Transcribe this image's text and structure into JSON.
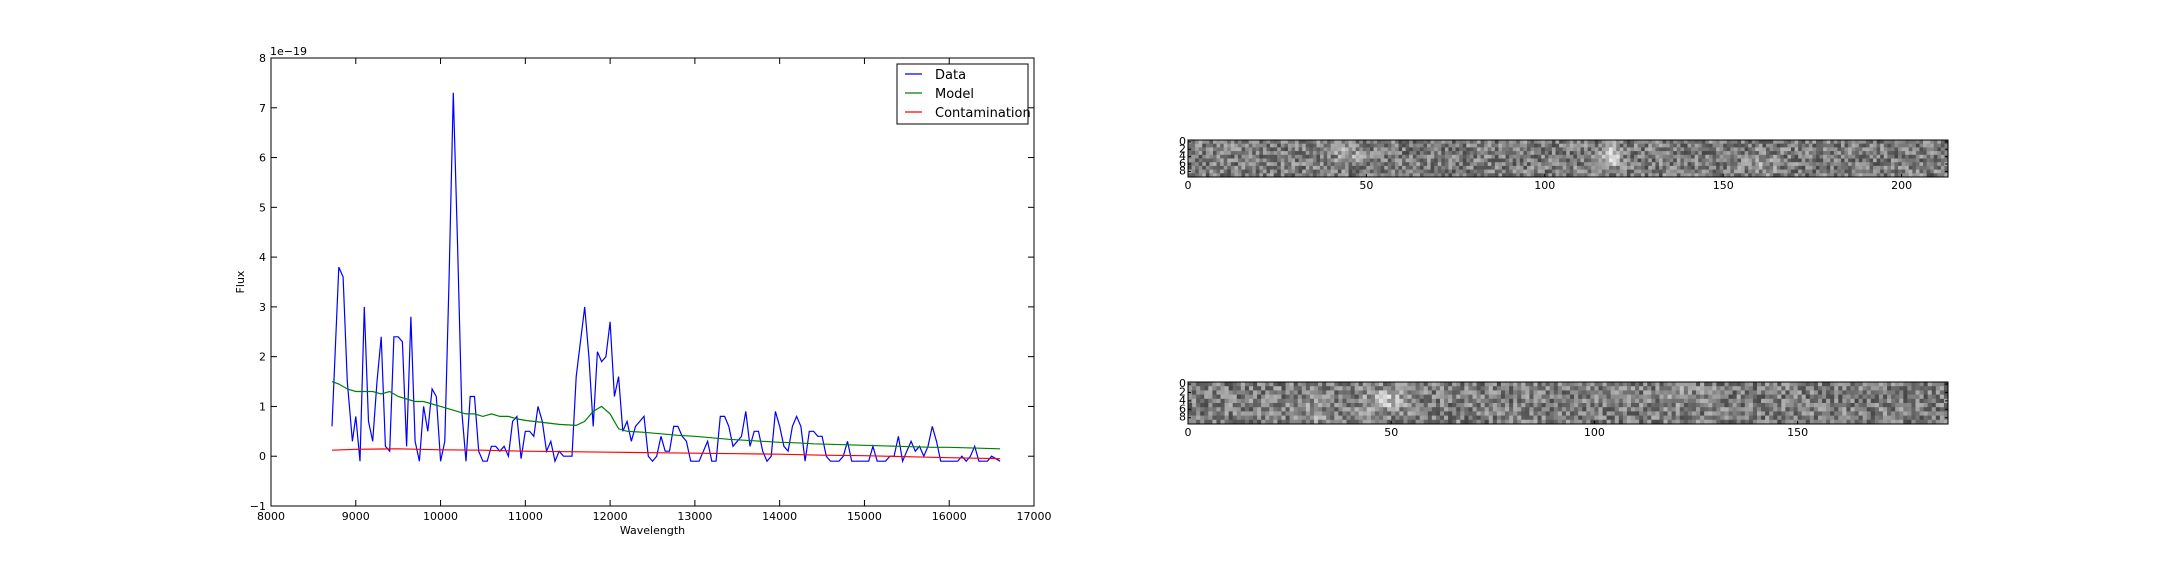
{
  "chart_data": [
    {
      "type": "line",
      "title": "",
      "xlabel": "Wavelength",
      "ylabel": "Flux",
      "offset_text": "1e−19",
      "xlim": [
        8000,
        17000
      ],
      "ylim": [
        -1,
        8
      ],
      "xticks": [
        8000,
        9000,
        10000,
        11000,
        12000,
        13000,
        14000,
        15000,
        16000,
        17000
      ],
      "yticks": [
        -1,
        0,
        1,
        2,
        3,
        4,
        5,
        6,
        7,
        8
      ],
      "xtick_labels": [
        "8000",
        "9000",
        "10000",
        "11000",
        "12000",
        "13000",
        "14000",
        "15000",
        "16000",
        "17000"
      ],
      "ytick_labels": [
        "−1",
        "0",
        "1",
        "2",
        "3",
        "4",
        "5",
        "6",
        "7",
        "8"
      ],
      "legend_position": "top-right",
      "series": [
        {
          "name": "Data",
          "color": "#0000ff",
          "points": [
            [
              8720,
              0.6
            ],
            [
              8800,
              3.8
            ],
            [
              8850,
              3.6
            ],
            [
              8900,
              1.5
            ],
            [
              8960,
              0.3
            ],
            [
              9000,
              0.8
            ],
            [
              9050,
              -0.1
            ],
            [
              9100,
              3.0
            ],
            [
              9150,
              0.7
            ],
            [
              9200,
              0.3
            ],
            [
              9250,
              1.5
            ],
            [
              9300,
              2.4
            ],
            [
              9350,
              0.2
            ],
            [
              9400,
              0.1
            ],
            [
              9450,
              2.4
            ],
            [
              9500,
              2.4
            ],
            [
              9550,
              2.3
            ],
            [
              9600,
              0.2
            ],
            [
              9650,
              2.8
            ],
            [
              9700,
              0.3
            ],
            [
              9750,
              -0.1
            ],
            [
              9800,
              1.0
            ],
            [
              9850,
              0.5
            ],
            [
              9900,
              1.35
            ],
            [
              9950,
              1.2
            ],
            [
              10000,
              -0.1
            ],
            [
              10050,
              0.3
            ],
            [
              10100,
              3.5
            ],
            [
              10150,
              7.3
            ],
            [
              10200,
              4.3
            ],
            [
              10250,
              0.9
            ],
            [
              10300,
              -0.1
            ],
            [
              10350,
              1.2
            ],
            [
              10400,
              1.2
            ],
            [
              10450,
              0.1
            ],
            [
              10500,
              -0.1
            ],
            [
              10550,
              -0.1
            ],
            [
              10600,
              0.2
            ],
            [
              10650,
              0.2
            ],
            [
              10700,
              0.1
            ],
            [
              10750,
              0.2
            ],
            [
              10800,
              0.0
            ],
            [
              10850,
              0.7
            ],
            [
              10900,
              0.8
            ],
            [
              10950,
              -0.05
            ],
            [
              11000,
              0.5
            ],
            [
              11050,
              0.5
            ],
            [
              11100,
              0.4
            ],
            [
              11150,
              1.0
            ],
            [
              11200,
              0.7
            ],
            [
              11250,
              0.1
            ],
            [
              11300,
              0.3
            ],
            [
              11350,
              -0.1
            ],
            [
              11400,
              0.1
            ],
            [
              11450,
              0.0
            ],
            [
              11500,
              0.0
            ],
            [
              11550,
              0.0
            ],
            [
              11600,
              1.6
            ],
            [
              11700,
              3.0
            ],
            [
              11750,
              2.0
            ],
            [
              11800,
              0.6
            ],
            [
              11850,
              2.1
            ],
            [
              11900,
              1.9
            ],
            [
              11950,
              2.0
            ],
            [
              12000,
              2.7
            ],
            [
              12050,
              1.2
            ],
            [
              12100,
              1.6
            ],
            [
              12150,
              0.5
            ],
            [
              12200,
              0.7
            ],
            [
              12250,
              0.3
            ],
            [
              12300,
              0.6
            ],
            [
              12350,
              0.7
            ],
            [
              12400,
              0.8
            ],
            [
              12450,
              0.0
            ],
            [
              12500,
              -0.1
            ],
            [
              12550,
              0.0
            ],
            [
              12600,
              0.4
            ],
            [
              12650,
              0.1
            ],
            [
              12700,
              0.1
            ],
            [
              12750,
              0.6
            ],
            [
              12800,
              0.6
            ],
            [
              12850,
              0.4
            ],
            [
              12900,
              0.3
            ],
            [
              12950,
              -0.1
            ],
            [
              13000,
              -0.1
            ],
            [
              13050,
              -0.1
            ],
            [
              13100,
              0.1
            ],
            [
              13150,
              0.3
            ],
            [
              13200,
              -0.1
            ],
            [
              13250,
              -0.1
            ],
            [
              13300,
              0.8
            ],
            [
              13350,
              0.8
            ],
            [
              13400,
              0.6
            ],
            [
              13450,
              0.2
            ],
            [
              13500,
              0.3
            ],
            [
              13550,
              0.4
            ],
            [
              13600,
              0.9
            ],
            [
              13650,
              0.2
            ],
            [
              13700,
              0.5
            ],
            [
              13750,
              0.5
            ],
            [
              13800,
              0.1
            ],
            [
              13850,
              -0.1
            ],
            [
              13900,
              0.0
            ],
            [
              13950,
              0.9
            ],
            [
              14000,
              0.6
            ],
            [
              14050,
              0.2
            ],
            [
              14100,
              0.1
            ],
            [
              14150,
              0.6
            ],
            [
              14200,
              0.8
            ],
            [
              14250,
              0.6
            ],
            [
              14300,
              -0.1
            ],
            [
              14350,
              0.5
            ],
            [
              14400,
              0.5
            ],
            [
              14450,
              0.4
            ],
            [
              14500,
              0.4
            ],
            [
              14550,
              0.0
            ],
            [
              14600,
              -0.1
            ],
            [
              14650,
              -0.1
            ],
            [
              14700,
              -0.1
            ],
            [
              14750,
              0.0
            ],
            [
              14800,
              0.3
            ],
            [
              14850,
              -0.1
            ],
            [
              14900,
              -0.1
            ],
            [
              15000,
              -0.1
            ],
            [
              15050,
              -0.1
            ],
            [
              15100,
              0.2
            ],
            [
              15150,
              -0.1
            ],
            [
              15200,
              -0.1
            ],
            [
              15250,
              -0.1
            ],
            [
              15300,
              0.0
            ],
            [
              15350,
              0.0
            ],
            [
              15400,
              0.4
            ],
            [
              15450,
              -0.1
            ],
            [
              15500,
              0.1
            ],
            [
              15550,
              0.3
            ],
            [
              15600,
              0.1
            ],
            [
              15650,
              0.2
            ],
            [
              15700,
              0.0
            ],
            [
              15750,
              0.2
            ],
            [
              15800,
              0.6
            ],
            [
              15850,
              0.3
            ],
            [
              15900,
              -0.1
            ],
            [
              15950,
              -0.1
            ],
            [
              16000,
              -0.1
            ],
            [
              16050,
              -0.1
            ],
            [
              16100,
              -0.1
            ],
            [
              16150,
              0.0
            ],
            [
              16200,
              -0.1
            ],
            [
              16250,
              0.0
            ],
            [
              16300,
              0.2
            ],
            [
              16350,
              -0.1
            ],
            [
              16400,
              -0.1
            ],
            [
              16450,
              -0.1
            ],
            [
              16500,
              0.0
            ],
            [
              16550,
              -0.05
            ],
            [
              16600,
              -0.1
            ]
          ]
        },
        {
          "name": "Model",
          "color": "#008000",
          "points": [
            [
              8720,
              1.5
            ],
            [
              8800,
              1.45
            ],
            [
              8900,
              1.35
            ],
            [
              9000,
              1.3
            ],
            [
              9100,
              1.3
            ],
            [
              9200,
              1.3
            ],
            [
              9300,
              1.25
            ],
            [
              9400,
              1.3
            ],
            [
              9500,
              1.2
            ],
            [
              9600,
              1.15
            ],
            [
              9700,
              1.1
            ],
            [
              9800,
              1.1
            ],
            [
              9900,
              1.05
            ],
            [
              10000,
              1.0
            ],
            [
              10100,
              0.95
            ],
            [
              10200,
              0.9
            ],
            [
              10300,
              0.85
            ],
            [
              10400,
              0.85
            ],
            [
              10500,
              0.8
            ],
            [
              10600,
              0.85
            ],
            [
              10700,
              0.8
            ],
            [
              10800,
              0.8
            ],
            [
              10900,
              0.75
            ],
            [
              11000,
              0.72
            ],
            [
              11200,
              0.68
            ],
            [
              11400,
              0.64
            ],
            [
              11600,
              0.62
            ],
            [
              11700,
              0.7
            ],
            [
              11800,
              0.9
            ],
            [
              11900,
              1.0
            ],
            [
              12000,
              0.85
            ],
            [
              12100,
              0.55
            ],
            [
              12200,
              0.5
            ],
            [
              12400,
              0.48
            ],
            [
              12600,
              0.45
            ],
            [
              12800,
              0.42
            ],
            [
              13000,
              0.4
            ],
            [
              13200,
              0.37
            ],
            [
              13400,
              0.34
            ],
            [
              13600,
              0.32
            ],
            [
              13800,
              0.3
            ],
            [
              14000,
              0.28
            ],
            [
              14200,
              0.27
            ],
            [
              14400,
              0.25
            ],
            [
              14600,
              0.24
            ],
            [
              14800,
              0.23
            ],
            [
              15000,
              0.22
            ],
            [
              15200,
              0.21
            ],
            [
              15400,
              0.2
            ],
            [
              15600,
              0.19
            ],
            [
              15800,
              0.18
            ],
            [
              16000,
              0.18
            ],
            [
              16200,
              0.17
            ],
            [
              16400,
              0.16
            ],
            [
              16600,
              0.15
            ]
          ]
        },
        {
          "name": "Contamination",
          "color": "#ff0000",
          "points": [
            [
              8720,
              0.12
            ],
            [
              9000,
              0.14
            ],
            [
              9500,
              0.15
            ],
            [
              10000,
              0.13
            ],
            [
              10500,
              0.12
            ],
            [
              11000,
              0.1
            ],
            [
              11500,
              0.09
            ],
            [
              12000,
              0.08
            ],
            [
              12500,
              0.07
            ],
            [
              13000,
              0.06
            ],
            [
              13500,
              0.05
            ],
            [
              14000,
              0.04
            ],
            [
              14500,
              0.02
            ],
            [
              15000,
              0.01
            ],
            [
              15500,
              -0.01
            ],
            [
              16000,
              -0.03
            ],
            [
              16600,
              -0.05
            ]
          ]
        }
      ]
    },
    {
      "type": "heatmap",
      "colormap": "gray",
      "xlim": [
        0,
        213
      ],
      "ylim": [
        10,
        0
      ],
      "xticks": [
        0,
        50,
        100,
        150,
        200
      ],
      "xtick_labels": [
        "0",
        "50",
        "100",
        "150",
        "200"
      ],
      "yticks": [
        0,
        2,
        4,
        6,
        8
      ],
      "ytick_labels": [
        "0",
        "2",
        "4",
        "6",
        "8"
      ]
    },
    {
      "type": "heatmap",
      "colormap": "gray",
      "xlim": [
        0,
        187
      ],
      "ylim": [
        10,
        0
      ],
      "xticks": [
        0,
        50,
        100,
        150
      ],
      "xtick_labels": [
        "0",
        "50",
        "100",
        "150"
      ],
      "yticks": [
        0,
        2,
        4,
        6,
        8
      ],
      "ytick_labels": [
        "0",
        "2",
        "4",
        "6",
        "8"
      ]
    }
  ]
}
